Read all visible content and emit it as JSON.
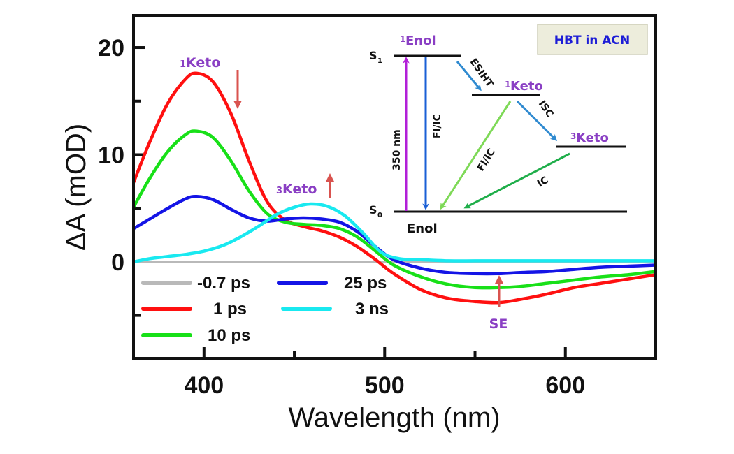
{
  "chart_data": {
    "type": "line",
    "title": "",
    "xlabel": "Wavelength (nm)",
    "ylabel": "ΔA (mOD)",
    "xlim": [
      361,
      650
    ],
    "ylim": [
      -9,
      23
    ],
    "grid": false,
    "xticks": [
      400,
      450,
      500,
      550,
      600
    ],
    "xtick_labels": [
      "400",
      "",
      "500",
      "",
      "600"
    ],
    "yticks": [
      20,
      15,
      10,
      5,
      0,
      -5
    ],
    "ytick_labels": [
      "20",
      "",
      "10",
      "",
      "0",
      ""
    ],
    "legend_position": "bottom-left",
    "series": [
      {
        "name": "-0.7 ps",
        "color": "#b9b9b9",
        "x": [
          361,
          400,
          450,
          500,
          550,
          600,
          650
        ],
        "y": [
          0,
          0,
          0,
          0,
          0,
          0,
          0
        ]
      },
      {
        "name": "1 ps",
        "color": "#ff1010",
        "x": [
          361,
          370,
          380,
          390,
          396,
          405,
          415,
          425,
          435,
          445,
          455,
          465,
          475,
          485,
          495,
          505,
          520,
          535,
          550,
          563,
          575,
          590,
          605,
          620,
          635,
          650
        ],
        "y": [
          7.4,
          11.2,
          14.8,
          17.1,
          17.6,
          16.8,
          13.8,
          9.4,
          5.6,
          3.9,
          3.3,
          2.9,
          2.3,
          1.4,
          0.2,
          -1.1,
          -2.6,
          -3.4,
          -3.7,
          -3.8,
          -3.5,
          -3.0,
          -2.4,
          -2.0,
          -1.6,
          -1.2
        ]
      },
      {
        "name": "10 ps",
        "color": "#18e018",
        "x": [
          361,
          370,
          380,
          390,
          396,
          405,
          415,
          425,
          435,
          445,
          455,
          465,
          475,
          485,
          495,
          505,
          520,
          535,
          550,
          563,
          575,
          590,
          605,
          620,
          635,
          650
        ],
        "y": [
          5.1,
          7.8,
          10.3,
          11.9,
          12.2,
          11.6,
          9.4,
          6.6,
          4.5,
          3.7,
          3.5,
          3.4,
          3.1,
          2.3,
          1.0,
          -0.3,
          -1.4,
          -2.1,
          -2.4,
          -2.4,
          -2.3,
          -2.0,
          -1.7,
          -1.4,
          -1.2,
          -0.9
        ]
      },
      {
        "name": "25 ps",
        "color": "#1414e6",
        "x": [
          361,
          370,
          380,
          390,
          396,
          405,
          415,
          425,
          435,
          445,
          455,
          465,
          475,
          485,
          495,
          505,
          520,
          535,
          550,
          563,
          575,
          590,
          605,
          620,
          635,
          650
        ],
        "y": [
          3.1,
          4.0,
          5.0,
          5.9,
          6.1,
          5.8,
          4.9,
          4.1,
          3.8,
          4.0,
          4.1,
          4.0,
          3.7,
          2.8,
          1.4,
          0.2,
          -0.6,
          -1.0,
          -1.1,
          -1.1,
          -1.0,
          -0.9,
          -0.7,
          -0.5,
          -0.4,
          -0.3
        ]
      },
      {
        "name": "3 ns",
        "color": "#19e9f0",
        "x": [
          361,
          370,
          380,
          390,
          400,
          410,
          420,
          430,
          440,
          450,
          459,
          468,
          478,
          488,
          498,
          508,
          520,
          535,
          550,
          563,
          575,
          590,
          605,
          620,
          635,
          650
        ],
        "y": [
          0.0,
          0.3,
          0.5,
          0.7,
          1.0,
          1.5,
          2.3,
          3.3,
          4.4,
          5.1,
          5.4,
          5.2,
          4.3,
          2.7,
          0.9,
          0.3,
          0.2,
          0.1,
          0.1,
          0.1,
          0.1,
          0.1,
          0.1,
          0.1,
          0.1,
          0.1
        ]
      }
    ],
    "annotations": [
      {
        "text_sup": "1",
        "text": "Keto",
        "near_x": 396,
        "near_y": 19.3
      },
      {
        "text_sup": "3",
        "text": "Keto",
        "near_x": 453,
        "near_y": 6.6
      },
      {
        "text": "SE",
        "near_x": 563,
        "near_y": -6.0
      },
      {
        "type": "arrow",
        "direction": "down",
        "at_x": 418,
        "from_y": 17.5,
        "to_y": 14.5,
        "color": "#d9534f"
      },
      {
        "type": "arrow",
        "direction": "up",
        "at_x": 470,
        "from_y": 6.1,
        "to_y": 8.0,
        "color": "#d9534f"
      },
      {
        "type": "arrow",
        "direction": "up",
        "at_x": 563,
        "from_y": -4.0,
        "to_y": -1.5,
        "color": "#d9534f"
      }
    ],
    "inset": {
      "badge": "HBT in ACN",
      "levels": {
        "s1": "S",
        "s1_sub": "1",
        "s0": "S",
        "s0_sub": "0",
        "enol_excited_sup": "1",
        "enol_excited": "Enol",
        "keto1_sup": "1",
        "keto1": "Keto",
        "keto3_sup": "3",
        "keto3": "Keto",
        "ground": "Enol"
      },
      "transitions": [
        {
          "label": "350 nm",
          "color": "#b21fd8"
        },
        {
          "label": "Fl/IC",
          "color": "#1a5fd6"
        },
        {
          "label": "ESIHT",
          "color": "#2f8ad0"
        },
        {
          "label": "Fl/IC",
          "color": "#7ed957"
        },
        {
          "label": "ISC",
          "color": "#2f8ad0"
        },
        {
          "label": "IC",
          "color": "#1fae4a"
        }
      ]
    }
  }
}
